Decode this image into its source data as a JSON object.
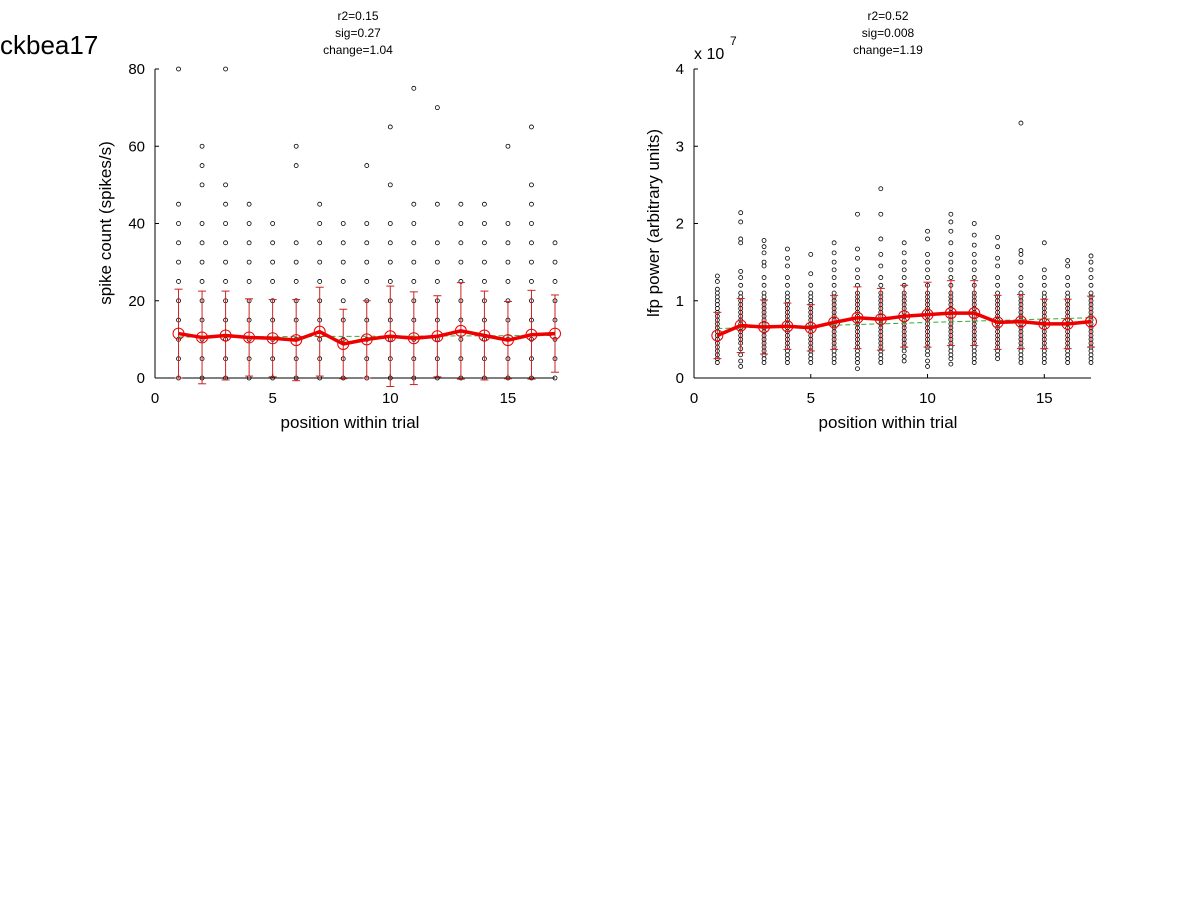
{
  "page": {
    "title": "ckbea17",
    "colors": {
      "scatter": "#000000",
      "mean_line": "#ee0000",
      "error_bar": "#cc2222",
      "fit_line": "#33aa33",
      "background": "#ffffff"
    }
  },
  "chart_data": [
    {
      "type": "scatter",
      "stats": [
        "r2=0.15",
        "sig=0.27",
        "change=1.04"
      ],
      "xlabel": "position within trial",
      "ylabel": "spike count (spikes/s)",
      "multiplier": "",
      "exponent": "",
      "xlim": [
        0,
        17
      ],
      "ylim": [
        0,
        80
      ],
      "xticks": [
        0,
        5,
        10,
        15
      ],
      "yticks": [
        0,
        20,
        40,
        60,
        80
      ],
      "grid": false,
      "mean": {
        "x": [
          1,
          2,
          3,
          4,
          5,
          6,
          7,
          8,
          9,
          10,
          11,
          12,
          13,
          14,
          15,
          16,
          17
        ],
        "y": [
          11.5,
          10.5,
          11,
          10.5,
          10.3,
          9.8,
          12,
          8.8,
          10,
          10.8,
          10.3,
          10.8,
          12.2,
          11,
          9.8,
          11.2,
          11.5
        ],
        "err": [
          11.5,
          12,
          11.5,
          10,
          10,
          10.5,
          11.5,
          9,
          10,
          13,
          12,
          10.5,
          12.5,
          11.5,
          10,
          11.5,
          10
        ]
      },
      "fit": {
        "x": [
          1,
          17
        ],
        "y": [
          10.6,
          11.0
        ]
      },
      "points": [
        {
          "x": 1,
          "y": [
            0,
            5,
            10,
            15,
            20,
            25,
            30,
            35,
            40,
            45,
            80
          ]
        },
        {
          "x": 2,
          "y": [
            0,
            5,
            10,
            15,
            20,
            25,
            30,
            35,
            40,
            50,
            55,
            60
          ]
        },
        {
          "x": 3,
          "y": [
            0,
            5,
            10,
            15,
            20,
            25,
            30,
            35,
            40,
            45,
            50,
            80
          ]
        },
        {
          "x": 4,
          "y": [
            0,
            5,
            10,
            15,
            20,
            25,
            30,
            35,
            40,
            45
          ]
        },
        {
          "x": 5,
          "y": [
            0,
            5,
            10,
            15,
            20,
            25,
            30,
            35,
            40
          ]
        },
        {
          "x": 6,
          "y": [
            0,
            5,
            10,
            15,
            20,
            25,
            30,
            35,
            55,
            60
          ]
        },
        {
          "x": 7,
          "y": [
            0,
            5,
            10,
            15,
            20,
            25,
            30,
            35,
            40,
            45
          ]
        },
        {
          "x": 8,
          "y": [
            0,
            5,
            10,
            15,
            20,
            25,
            30,
            35,
            40
          ]
        },
        {
          "x": 9,
          "y": [
            0,
            5,
            10,
            15,
            20,
            25,
            30,
            35,
            40,
            55
          ]
        },
        {
          "x": 10,
          "y": [
            0,
            5,
            10,
            15,
            20,
            25,
            30,
            35,
            40,
            50,
            65
          ]
        },
        {
          "x": 11,
          "y": [
            0,
            5,
            10,
            15,
            20,
            25,
            30,
            35,
            40,
            45,
            75
          ]
        },
        {
          "x": 12,
          "y": [
            0,
            5,
            10,
            15,
            20,
            25,
            30,
            35,
            45,
            70
          ]
        },
        {
          "x": 13,
          "y": [
            0,
            5,
            10,
            15,
            20,
            25,
            30,
            35,
            40,
            45
          ]
        },
        {
          "x": 14,
          "y": [
            0,
            5,
            10,
            15,
            20,
            25,
            30,
            35,
            40,
            45
          ]
        },
        {
          "x": 15,
          "y": [
            0,
            5,
            10,
            15,
            20,
            25,
            30,
            35,
            40,
            60
          ]
        },
        {
          "x": 16,
          "y": [
            0,
            5,
            10,
            15,
            20,
            25,
            30,
            35,
            40,
            45,
            50,
            65
          ]
        },
        {
          "x": 17,
          "y": [
            0,
            5,
            10,
            15,
            20,
            25,
            30,
            35
          ]
        }
      ]
    },
    {
      "type": "scatter",
      "stats": [
        "r2=0.52",
        "sig=0.008",
        "change=1.19"
      ],
      "xlabel": "position within trial",
      "ylabel": "lfp power (arbitrary units)",
      "multiplier": "x 10",
      "exponent": "7",
      "xlim": [
        0,
        17
      ],
      "ylim": [
        0,
        4
      ],
      "xticks": [
        0,
        5,
        10,
        15
      ],
      "yticks": [
        0,
        1,
        2,
        3,
        4
      ],
      "grid": false,
      "mean": {
        "x": [
          1,
          2,
          3,
          4,
          5,
          6,
          7,
          8,
          9,
          10,
          11,
          12,
          13,
          14,
          15,
          16,
          17
        ],
        "y": [
          0.55,
          0.68,
          0.66,
          0.67,
          0.65,
          0.72,
          0.78,
          0.76,
          0.8,
          0.82,
          0.84,
          0.84,
          0.72,
          0.73,
          0.7,
          0.7,
          0.73
        ],
        "err": [
          0.3,
          0.35,
          0.35,
          0.3,
          0.3,
          0.35,
          0.4,
          0.4,
          0.4,
          0.42,
          0.42,
          0.42,
          0.35,
          0.35,
          0.32,
          0.32,
          0.33
        ]
      },
      "fit": {
        "x": [
          1,
          17
        ],
        "y": [
          0.64,
          0.78
        ]
      },
      "points": [
        {
          "x": 1,
          "y": [
            0.2,
            0.25,
            0.3,
            0.35,
            0.4,
            0.45,
            0.5,
            0.55,
            0.6,
            0.65,
            0.7,
            0.75,
            0.8,
            0.85,
            0.9,
            0.95,
            1.0,
            1.05,
            1.1,
            1.15,
            1.25,
            1.32
          ]
        },
        {
          "x": 2,
          "y": [
            0.15,
            0.22,
            0.3,
            0.38,
            0.45,
            0.5,
            0.55,
            0.6,
            0.65,
            0.7,
            0.75,
            0.8,
            0.85,
            0.9,
            0.95,
            1.0,
            1.05,
            1.1,
            1.2,
            1.3,
            1.38,
            1.75,
            1.8,
            2.02,
            2.14
          ]
        },
        {
          "x": 3,
          "y": [
            0.2,
            0.25,
            0.3,
            0.35,
            0.4,
            0.45,
            0.5,
            0.55,
            0.6,
            0.65,
            0.7,
            0.75,
            0.8,
            0.85,
            0.9,
            0.95,
            1.0,
            1.05,
            1.1,
            1.2,
            1.3,
            1.45,
            1.5,
            1.62,
            1.7,
            1.78
          ]
        },
        {
          "x": 4,
          "y": [
            0.2,
            0.25,
            0.3,
            0.35,
            0.4,
            0.45,
            0.5,
            0.55,
            0.6,
            0.65,
            0.7,
            0.75,
            0.8,
            0.85,
            0.9,
            0.95,
            1.0,
            1.05,
            1.1,
            1.2,
            1.3,
            1.45,
            1.55,
            1.67
          ]
        },
        {
          "x": 5,
          "y": [
            0.2,
            0.25,
            0.3,
            0.35,
            0.4,
            0.45,
            0.5,
            0.55,
            0.6,
            0.65,
            0.7,
            0.75,
            0.8,
            0.85,
            0.9,
            0.95,
            1.0,
            1.05,
            1.1,
            1.2,
            1.35,
            1.6
          ]
        },
        {
          "x": 6,
          "y": [
            0.2,
            0.25,
            0.3,
            0.35,
            0.4,
            0.45,
            0.5,
            0.55,
            0.6,
            0.65,
            0.7,
            0.75,
            0.8,
            0.85,
            0.9,
            0.95,
            1.0,
            1.05,
            1.1,
            1.2,
            1.3,
            1.4,
            1.5,
            1.62,
            1.75
          ]
        },
        {
          "x": 7,
          "y": [
            0.12,
            0.2,
            0.25,
            0.3,
            0.35,
            0.4,
            0.45,
            0.5,
            0.55,
            0.6,
            0.65,
            0.7,
            0.75,
            0.8,
            0.85,
            0.9,
            0.95,
            1.0,
            1.05,
            1.1,
            1.2,
            1.3,
            1.4,
            1.55,
            1.67,
            2.12
          ]
        },
        {
          "x": 8,
          "y": [
            0.2,
            0.25,
            0.3,
            0.35,
            0.4,
            0.45,
            0.5,
            0.55,
            0.6,
            0.65,
            0.7,
            0.75,
            0.8,
            0.85,
            0.9,
            0.95,
            1.0,
            1.05,
            1.1,
            1.2,
            1.3,
            1.45,
            1.6,
            1.8,
            2.12,
            2.45
          ]
        },
        {
          "x": 9,
          "y": [
            0.22,
            0.28,
            0.35,
            0.4,
            0.45,
            0.5,
            0.55,
            0.6,
            0.65,
            0.7,
            0.75,
            0.8,
            0.85,
            0.9,
            0.95,
            1.0,
            1.05,
            1.1,
            1.2,
            1.3,
            1.4,
            1.5,
            1.62,
            1.75
          ]
        },
        {
          "x": 10,
          "y": [
            0.15,
            0.22,
            0.3,
            0.35,
            0.4,
            0.45,
            0.5,
            0.55,
            0.6,
            0.65,
            0.7,
            0.75,
            0.8,
            0.85,
            0.9,
            0.95,
            1.0,
            1.05,
            1.1,
            1.2,
            1.3,
            1.4,
            1.5,
            1.6,
            1.8,
            1.9
          ]
        },
        {
          "x": 11,
          "y": [
            0.18,
            0.25,
            0.3,
            0.35,
            0.4,
            0.45,
            0.5,
            0.55,
            0.6,
            0.65,
            0.7,
            0.75,
            0.8,
            0.85,
            0.9,
            0.95,
            1.0,
            1.05,
            1.1,
            1.2,
            1.3,
            1.4,
            1.5,
            1.6,
            1.75,
            1.9,
            2.02,
            2.12
          ]
        },
        {
          "x": 12,
          "y": [
            0.2,
            0.25,
            0.3,
            0.35,
            0.4,
            0.45,
            0.5,
            0.55,
            0.6,
            0.65,
            0.7,
            0.75,
            0.8,
            0.85,
            0.9,
            0.95,
            1.0,
            1.05,
            1.1,
            1.2,
            1.3,
            1.4,
            1.5,
            1.6,
            1.72,
            1.85,
            2.0
          ]
        },
        {
          "x": 13,
          "y": [
            0.25,
            0.3,
            0.35,
            0.4,
            0.45,
            0.5,
            0.55,
            0.6,
            0.65,
            0.7,
            0.75,
            0.8,
            0.85,
            0.9,
            0.95,
            1.0,
            1.05,
            1.1,
            1.2,
            1.3,
            1.45,
            1.55,
            1.7,
            1.82
          ]
        },
        {
          "x": 14,
          "y": [
            0.2,
            0.25,
            0.3,
            0.35,
            0.4,
            0.45,
            0.5,
            0.55,
            0.6,
            0.65,
            0.7,
            0.75,
            0.8,
            0.85,
            0.9,
            0.95,
            1.0,
            1.05,
            1.1,
            1.2,
            1.3,
            1.5,
            1.6,
            1.65,
            3.3
          ]
        },
        {
          "x": 15,
          "y": [
            0.2,
            0.25,
            0.3,
            0.35,
            0.4,
            0.45,
            0.5,
            0.55,
            0.6,
            0.65,
            0.7,
            0.75,
            0.8,
            0.85,
            0.9,
            0.95,
            1.0,
            1.05,
            1.1,
            1.2,
            1.3,
            1.4,
            1.75
          ]
        },
        {
          "x": 16,
          "y": [
            0.2,
            0.25,
            0.3,
            0.35,
            0.4,
            0.45,
            0.5,
            0.55,
            0.6,
            0.65,
            0.7,
            0.75,
            0.8,
            0.85,
            0.9,
            0.95,
            1.0,
            1.05,
            1.1,
            1.2,
            1.3,
            1.45,
            1.52
          ]
        },
        {
          "x": 17,
          "y": [
            0.2,
            0.25,
            0.3,
            0.35,
            0.4,
            0.45,
            0.5,
            0.55,
            0.6,
            0.65,
            0.7,
            0.75,
            0.8,
            0.85,
            0.9,
            0.95,
            1.0,
            1.05,
            1.1,
            1.2,
            1.3,
            1.4,
            1.5,
            1.58
          ]
        }
      ]
    }
  ]
}
